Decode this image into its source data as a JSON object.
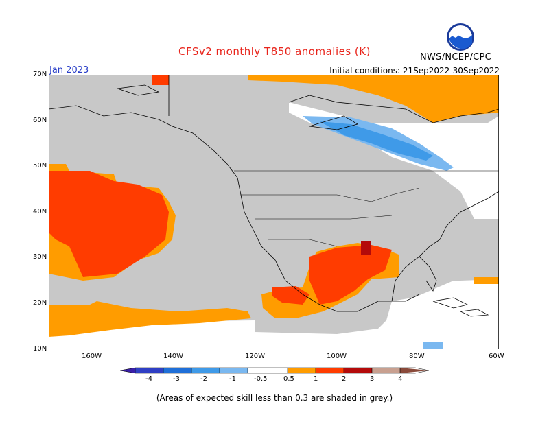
{
  "header": {
    "title": "CFSv2 monthly T850 anomalies (K)",
    "month": "Jan 2023",
    "initial_conditions": "Initial conditions: 21Sep2022-30Sep2022",
    "agency": "NWS/NCEP/CPC",
    "logo_text": "NOAA"
  },
  "axes": {
    "lat_labels": [
      "70N",
      "60N",
      "50N",
      "40N",
      "30N",
      "20N",
      "10N"
    ],
    "lon_labels": [
      "160W",
      "140W",
      "120W",
      "100W",
      "80W",
      "60W"
    ]
  },
  "colorbar": {
    "labels": [
      "-4",
      "-3",
      "-2",
      "-1",
      "-0.5",
      "0.5",
      "1",
      "2",
      "3",
      "4"
    ],
    "colors": {
      "lt_-4": "#3a1fa8",
      "-4_-3": "#2f3fc4",
      "-3_-2": "#1f6fd8",
      "-2_-1": "#3f9ae8",
      "-1_-0.5": "#7ab8f0",
      "neutral": "#ffffff",
      "0.5_1": "#ff9c00",
      "1_2": "#ff3c00",
      "2_3": "#b40a0a",
      "3_4": "#c8a090",
      "gt_4": "#8a4a3a",
      "low_skill_grey": "#c8c8c8"
    }
  },
  "caption": "(Areas of expected skill less than 0.3 are shaded in grey.)"
}
